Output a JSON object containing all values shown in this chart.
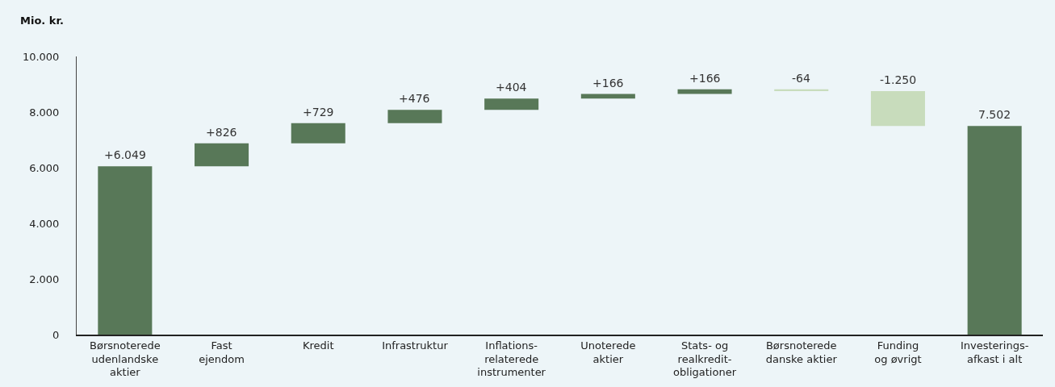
{
  "chart_data": {
    "type": "bar",
    "ylabel": "Mio. kr.",
    "categories": [
      "Børsnoterede\nudenlandske\naktier",
      "Fast\nejendom",
      "Kredit",
      "Infrastruktur",
      "Inflations-\nrelaterede\ninstrumenter",
      "Unoterede\naktier",
      "Stats- og\nrealkredit-\nobligationer",
      "Børsnoterede\ndanske aktier",
      "Funding\nog øvrigt",
      "Investerings-\nafkast i alt"
    ],
    "values": [
      6049,
      826,
      729,
      476,
      404,
      166,
      166,
      -64,
      -1250,
      7502
    ],
    "base": [
      0,
      6049,
      6875,
      7604,
      8080,
      8484,
      8650,
      8816,
      8752,
      0
    ],
    "colors": [
      "#587858",
      "#587858",
      "#587858",
      "#587858",
      "#587858",
      "#587858",
      "#587858",
      "#c8dcbc",
      "#c8dcbc",
      "#587858"
    ],
    "value_labels": [
      "+6.049",
      "+826",
      "+729",
      "+476",
      "+404",
      "+166",
      "+166",
      "-64",
      "-1.250",
      "7.502"
    ],
    "ylim": [
      0,
      10000
    ],
    "yticks": [
      {
        "value": 0,
        "label": "0"
      },
      {
        "value": 2000,
        "label": "2.000"
      },
      {
        "value": 4000,
        "label": "4.000"
      },
      {
        "value": 6000,
        "label": "6.000"
      },
      {
        "value": 8000,
        "label": "8.000"
      },
      {
        "value": 10000,
        "label": "10.000"
      }
    ],
    "grid": false
  }
}
